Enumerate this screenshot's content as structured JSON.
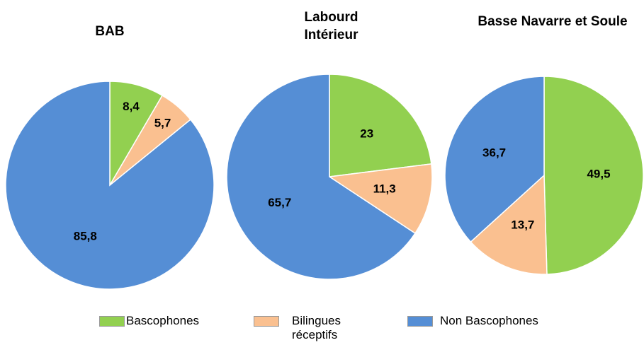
{
  "chart_data": [
    {
      "type": "pie",
      "title": "BAB",
      "categories": [
        "Bascophones",
        "Bilingues réceptifs",
        "Non Bascophones"
      ],
      "values": [
        8.4,
        5.7,
        85.8
      ],
      "value_labels": [
        "8,4",
        "5,7",
        "85,8"
      ],
      "colors": [
        "#92d050",
        "#fac090",
        "#558ed5"
      ]
    },
    {
      "type": "pie",
      "title": "Labourd Intérieur",
      "categories": [
        "Bascophones",
        "Bilingues réceptifs",
        "Non Bascophones"
      ],
      "values": [
        23,
        11.3,
        65.7
      ],
      "value_labels": [
        "23",
        "11,3",
        "65,7"
      ],
      "colors": [
        "#92d050",
        "#fac090",
        "#558ed5"
      ]
    },
    {
      "type": "pie",
      "title": "Basse Navarre et Soule",
      "categories": [
        "Bascophones",
        "Bilingues réceptifs",
        "Non Bascophones"
      ],
      "values": [
        49.5,
        13.7,
        36.7
      ],
      "value_labels": [
        "49,5",
        "13,7",
        "36,7"
      ],
      "colors": [
        "#92d050",
        "#fac090",
        "#558ed5"
      ]
    }
  ]
}
